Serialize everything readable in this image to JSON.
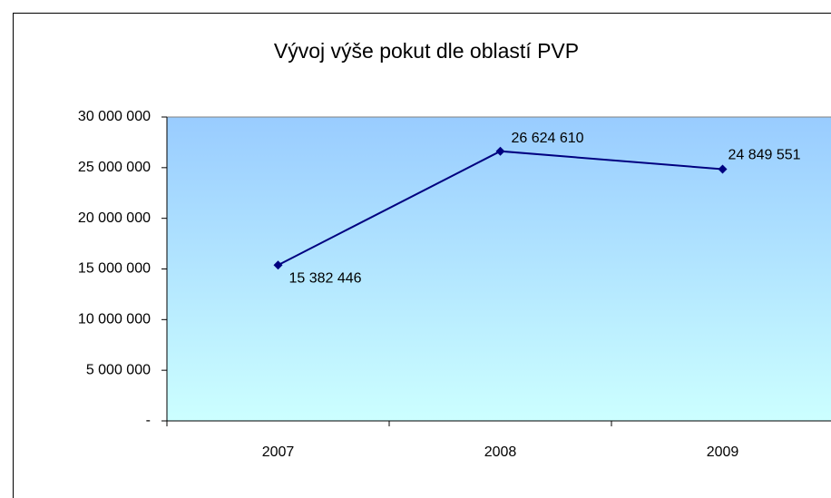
{
  "chart_data": {
    "type": "line",
    "title": "Vývoj výše pokut dle oblastí PVP",
    "categories": [
      "2007",
      "2008",
      "2009"
    ],
    "series": [
      {
        "name": null,
        "color": "#000080",
        "values": [
          15382446,
          26624610,
          24849551
        ],
        "value_labels": [
          "15 382 446",
          "26 624 610",
          "24 849 551"
        ]
      }
    ],
    "ylim": [
      0,
      30000000
    ],
    "yticks": [
      {
        "value": 0,
        "label": "-"
      },
      {
        "value": 5000000,
        "label": "5 000 000"
      },
      {
        "value": 10000000,
        "label": "10 000 000"
      },
      {
        "value": 15000000,
        "label": "15 000 000"
      },
      {
        "value": 20000000,
        "label": "20 000 000"
      },
      {
        "value": 25000000,
        "label": "25 000 000"
      },
      {
        "value": 30000000,
        "label": "30 000 000"
      }
    ],
    "plot_background": [
      "#99ccff",
      "#ccffff"
    ]
  }
}
